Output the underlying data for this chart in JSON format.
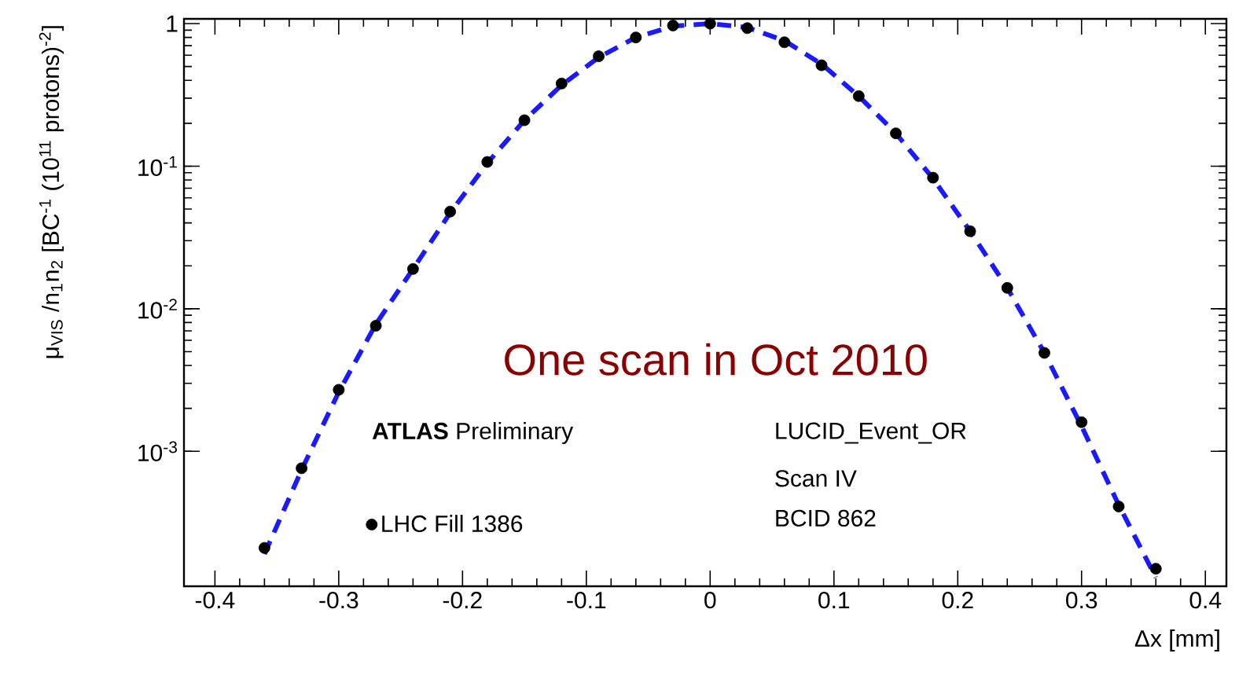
{
  "chart_data": {
    "type": "scatter",
    "xlabel": "Δx [mm]",
    "ylabel": "μ$_{VIS}$ /n$_{1}$n$_{2}$ [BC$^{-1}$ (10$^{11}$ protons)$^{-2}$]",
    "annotations": [
      "One scan in Oct 2010",
      "**ATLAS** Preliminary",
      "LUCID_Event_OR",
      "Scan IV",
      "BCID 862"
    ],
    "log": "y",
    "legend": "bottom left",
    "xlim": [
      -0.425,
      0.417
    ],
    "xticks": [
      -0.4,
      -0.3,
      -0.2,
      -0.1,
      0,
      0.1,
      0.2,
      0.3,
      0.4
    ],
    "ylim": [
      0.000113,
      1.08
    ],
    "yticks": [
      {
        "value": 0.001,
        "label": "10$^{-3}$"
      },
      {
        "value": 0.01,
        "label": "10$^{-2}$"
      },
      {
        "value": 0.1,
        "label": "10$^{-1}$"
      },
      1
    ],
    "series": [
      {
        "name": "LHC Fill 1386",
        "marker": "circle",
        "color": "#000000",
        "x": [
          -0.36,
          -0.33,
          -0.3,
          -0.27,
          -0.24,
          -0.21,
          -0.18,
          -0.15,
          -0.12,
          -0.09,
          -0.06,
          -0.03,
          0,
          0.03,
          0.06,
          0.09,
          0.12,
          0.15,
          0.18,
          0.21,
          0.24,
          0.27,
          0.3,
          0.33,
          0.36
        ],
        "values": [
          0.00021,
          0.00076,
          0.0027,
          0.0076,
          0.019,
          0.048,
          0.107,
          0.21,
          0.38,
          0.59,
          0.8,
          0.97,
          1.0,
          0.93,
          0.74,
          0.51,
          0.31,
          0.17,
          0.083,
          0.035,
          0.014,
          0.0049,
          0.0016,
          0.00041,
          0.00015
        ]
      },
      {
        "type": "line",
        "line_style": "dashed",
        "marker": "none",
        "color": "#1a1aff",
        "x": [
          -0.36,
          -0.33,
          -0.3,
          -0.27,
          -0.24,
          -0.21,
          -0.18,
          -0.15,
          -0.12,
          -0.09,
          -0.06,
          -0.03,
          0,
          0.03,
          0.06,
          0.09,
          0.12,
          0.15,
          0.18,
          0.21,
          0.24,
          0.27,
          0.3,
          0.33,
          0.36
        ],
        "values": [
          0.00019,
          0.00074,
          0.0026,
          0.0078,
          0.019,
          0.047,
          0.105,
          0.21,
          0.37,
          0.58,
          0.8,
          0.96,
          1.0,
          0.94,
          0.76,
          0.52,
          0.31,
          0.17,
          0.082,
          0.035,
          0.014,
          0.0049,
          0.0015,
          0.00042,
          0.00013
        ]
      }
    ]
  }
}
